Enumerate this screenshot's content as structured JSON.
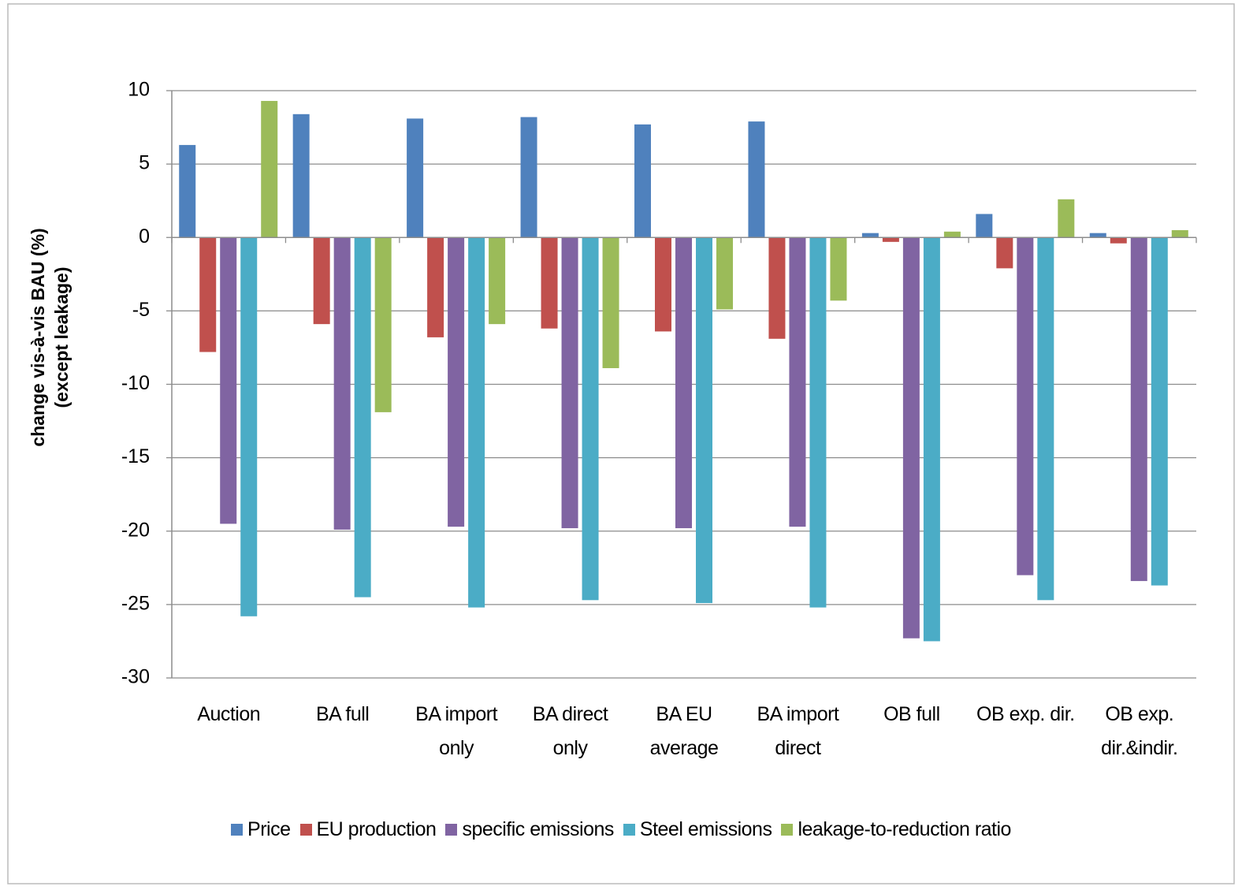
{
  "chart_data": {
    "type": "bar",
    "y_label": [
      "change vis-à-vis BAU (%)",
      "(except leakage)"
    ],
    "categories": [
      "Auction",
      "BA full",
      "BA import only",
      "BA direct only",
      "BA EU average",
      "BA import direct",
      "OB full",
      "OB exp. dir.",
      "OB exp. dir.&indir."
    ],
    "series": [
      {
        "name": "Price",
        "color": "#4f81bd",
        "values": [
          6.3,
          8.4,
          8.1,
          8.2,
          7.7,
          7.9,
          0.3,
          1.6,
          0.3
        ]
      },
      {
        "name": "EU production",
        "color": "#c0504d",
        "values": [
          -7.8,
          -5.9,
          -6.8,
          -6.2,
          -6.4,
          -6.9,
          -0.3,
          -2.1,
          -0.4
        ]
      },
      {
        "name": "specific emissions",
        "color": "#8064a2",
        "values": [
          -19.5,
          -19.9,
          -19.7,
          -19.8,
          -19.8,
          -19.7,
          -27.3,
          -23.0,
          -23.4
        ]
      },
      {
        "name": "Steel emissions",
        "color": "#4bacc6",
        "values": [
          -25.8,
          -24.5,
          -25.2,
          -24.7,
          -24.9,
          -25.2,
          -27.5,
          -24.7,
          -23.7
        ]
      },
      {
        "name": "leakage-to-reduction ratio",
        "color": "#9bbb59",
        "values": [
          9.3,
          -11.9,
          -5.9,
          -8.9,
          -4.9,
          -4.3,
          0.4,
          2.6,
          0.5
        ]
      }
    ],
    "ylim": [
      -30,
      10
    ],
    "yticks": [
      -30,
      -25,
      -20,
      -15,
      -10,
      -5,
      0,
      5,
      10
    ],
    "grid": true,
    "legend": "bottom"
  }
}
